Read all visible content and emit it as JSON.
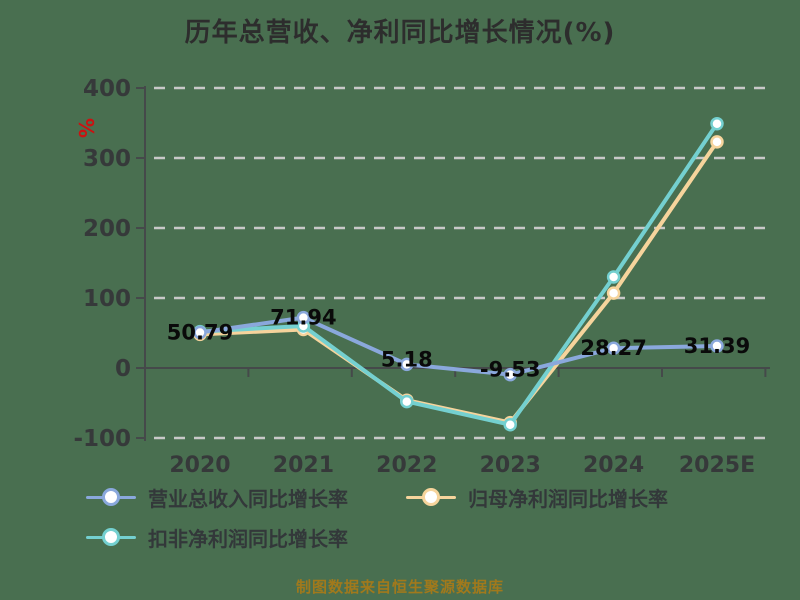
{
  "title": "历年总营收、净利同比增长情况(%)",
  "y_axis_unit_label": "%",
  "source_note": "制图数据来自恒生聚源数据库",
  "colors": {
    "background": "#496f50",
    "title_text": "#2d2d2d",
    "axis_line": "#45494a",
    "grid_line": "#c9c9c9",
    "tick_label": "#36393a",
    "data_label": "#0a0a0a",
    "unit_label": "#cc1111",
    "source_text": "#a1791c",
    "legend_text": "#33383a",
    "revenue_series": "#8aa8dc",
    "net_profit_series": "#f6d49c",
    "non_gaap_series": "#74d0d0"
  },
  "chart_data": {
    "type": "line",
    "title": "历年总营收、净利同比增长情况(%)",
    "categories": [
      "2020",
      "2021",
      "2022",
      "2023",
      "2024",
      "2025E"
    ],
    "series": [
      {
        "name": "营业总收入同比增长率",
        "color": "#8aa8dc",
        "values": [
          50.79,
          71.94,
          5.18,
          -9.53,
          28.27,
          31.39
        ],
        "data_labels": [
          "50.79",
          "71.94",
          "5.18",
          "-9.53",
          "28.27",
          "31.39"
        ]
      },
      {
        "name": "归母净利润同比增长率",
        "color": "#f6d49c",
        "values": [
          48,
          55,
          -46,
          -78,
          107,
          323
        ],
        "data_labels": []
      },
      {
        "name": "扣非净利润同比增长率",
        "color": "#74d0d0",
        "values": [
          52,
          60,
          -48,
          -81,
          130,
          349
        ],
        "data_labels": []
      }
    ],
    "ylim": [
      -100,
      400
    ],
    "yticks": [
      400,
      300,
      200,
      100,
      0,
      -100
    ],
    "ylabel": "%",
    "xlabel": "",
    "grid": "horizontal-dashed",
    "legend_position": "bottom-left",
    "marker": "circle-white-fill"
  },
  "legend": {
    "items": [
      {
        "label": "营业总收入同比增长率",
        "color": "#8aa8dc"
      },
      {
        "label": "归母净利润同比增长率",
        "color": "#f6d49c"
      },
      {
        "label": "扣非净利润同比增长率",
        "color": "#74d0d0"
      }
    ]
  }
}
